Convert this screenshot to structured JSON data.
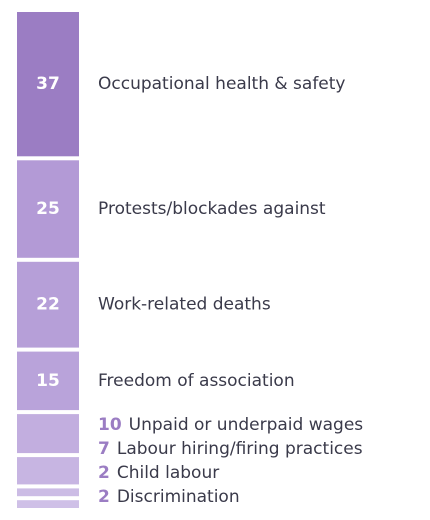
{
  "chart_data": {
    "type": "stacked-column",
    "categories": [
      "Occupational health & safety",
      "Protests/blockades against",
      "Work-related deaths",
      "Freedom of association",
      "Unpaid or underpaid wages",
      "Labour hiring/firing practices",
      "Child labour",
      "Discrimination"
    ],
    "values": [
      37,
      25,
      22,
      15,
      10,
      7,
      2,
      2
    ],
    "colors": [
      "#9b7dc3",
      "#b39ad6",
      "#b69fd8",
      "#b9a3da",
      "#c2aedf",
      "#c7b5e2",
      "#ccbce5",
      "#cfc0e7"
    ],
    "label_color": "#9b7dc3"
  }
}
